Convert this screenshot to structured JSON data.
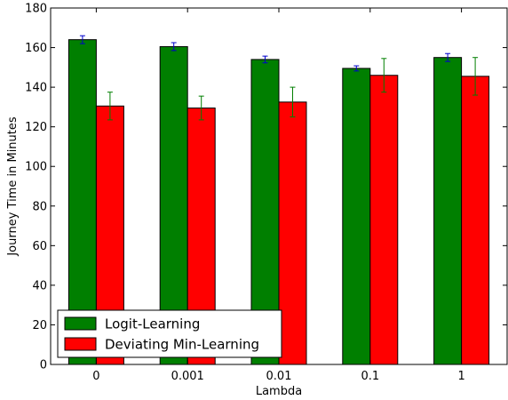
{
  "chart_data": {
    "type": "bar",
    "xlabel": "Lambda",
    "ylabel": "Journey Time in Minutes",
    "ylim": [
      0,
      180
    ],
    "yticks": [
      0,
      20,
      40,
      60,
      80,
      100,
      120,
      140,
      160,
      180
    ],
    "categories": [
      "0",
      "0.001",
      "0.01",
      "0.1",
      "1"
    ],
    "series": [
      {
        "name": "Logit-Learning",
        "color": "#007f00",
        "errcolor": "#0000cc",
        "values": [
          164,
          160.5,
          154,
          149.5,
          155
        ],
        "err": [
          2,
          2,
          1.7,
          1.3,
          2
        ]
      },
      {
        "name": "Deviating Min-Learning",
        "color": "#ff0000",
        "errcolor": "#007f00",
        "values": [
          130.5,
          129.5,
          132.5,
          146,
          145.5
        ],
        "err": [
          7,
          6,
          7.5,
          8.5,
          9.5
        ]
      }
    ],
    "legend": "bottom-left",
    "grid": false
  }
}
